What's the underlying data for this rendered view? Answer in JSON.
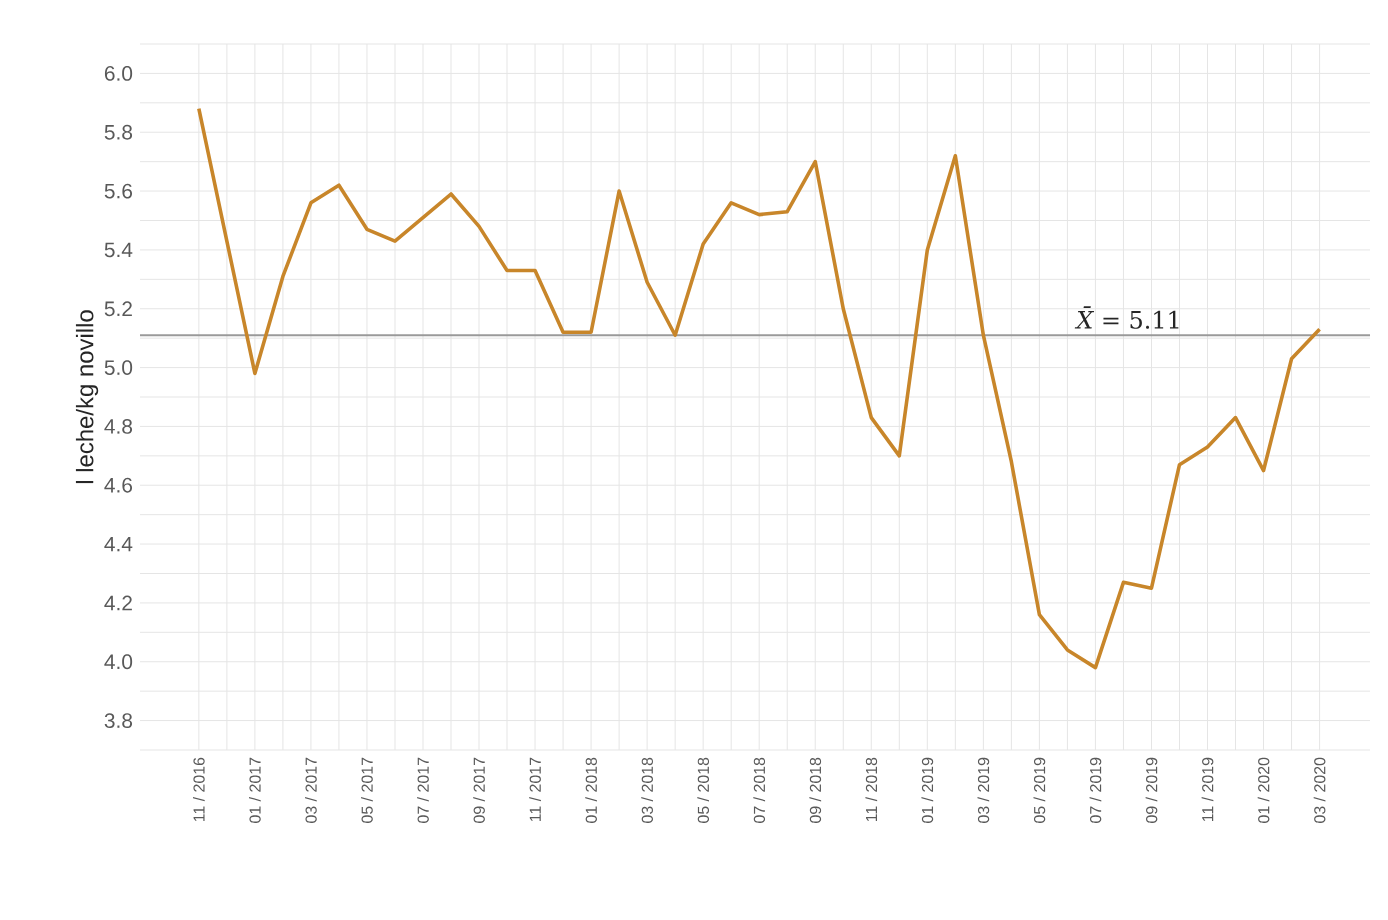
{
  "chart_data": {
    "type": "line",
    "ylabel": "l leche/kg novillo",
    "categories": [
      "11 / 2016",
      null,
      "01 / 2017",
      null,
      "03 / 2017",
      null,
      "05 / 2017",
      null,
      "07 / 2017",
      null,
      "09 / 2017",
      null,
      "11 / 2017",
      null,
      "01 / 2018",
      null,
      "03 / 2018",
      null,
      "05 / 2018",
      null,
      "07 / 2018",
      null,
      "09 / 2018",
      null,
      "11 / 2018",
      null,
      "01 / 2019",
      null,
      "03 / 2019",
      null,
      "05 / 2019",
      null,
      "07 / 2019",
      null,
      "09 / 2019",
      null,
      "11 / 2019",
      null,
      "01 / 2020",
      null,
      "03 / 2020"
    ],
    "series": [
      {
        "color": "#c8862a",
        "values": [
          5.88,
          5.43,
          4.98,
          5.31,
          5.56,
          5.62,
          5.47,
          5.43,
          5.51,
          5.59,
          5.48,
          5.33,
          5.33,
          5.12,
          5.12,
          5.6,
          5.29,
          5.11,
          5.42,
          5.56,
          5.52,
          5.53,
          5.7,
          5.2,
          4.83,
          4.7,
          5.4,
          5.72,
          5.11,
          4.68,
          4.16,
          4.04,
          3.98,
          4.27,
          4.25,
          4.67,
          4.73,
          4.83,
          4.65,
          5.03,
          5.13
        ]
      }
    ],
    "ylim": [
      3.7,
      6.1
    ],
    "yticks": [
      {
        "value": 3.7,
        "label": null
      },
      {
        "value": 3.8,
        "label": "3.8"
      },
      {
        "value": 3.9,
        "label": null
      },
      {
        "value": 4.0,
        "label": "4.0"
      },
      {
        "value": 4.1,
        "label": null
      },
      {
        "value": 4.2,
        "label": "4.2"
      },
      {
        "value": 4.3,
        "label": null
      },
      {
        "value": 4.4,
        "label": "4.4"
      },
      {
        "value": 4.5,
        "label": null
      },
      {
        "value": 4.6,
        "label": "4.6"
      },
      {
        "value": 4.7,
        "label": null
      },
      {
        "value": 4.8,
        "label": "4.8"
      },
      {
        "value": 4.9,
        "label": null
      },
      {
        "value": 5.0,
        "label": "5.0"
      },
      {
        "value": 5.1,
        "label": null
      },
      {
        "value": 5.2,
        "label": "5.2"
      },
      {
        "value": 5.3,
        "label": null
      },
      {
        "value": 5.4,
        "label": "5.4"
      },
      {
        "value": 5.5,
        "label": null
      },
      {
        "value": 5.6,
        "label": "5.6"
      },
      {
        "value": 5.7,
        "label": null
      },
      {
        "value": 5.8,
        "label": "5.8"
      },
      {
        "value": 5.9,
        "label": null
      },
      {
        "value": 6.0,
        "label": "6.0"
      },
      {
        "value": 6.1,
        "label": null
      }
    ],
    "ref_lines": [
      {
        "axis": "y",
        "value": 5.11,
        "label": "*X̄* = 5.11",
        "color": "#9a9a9a"
      }
    ],
    "grid": true
  }
}
